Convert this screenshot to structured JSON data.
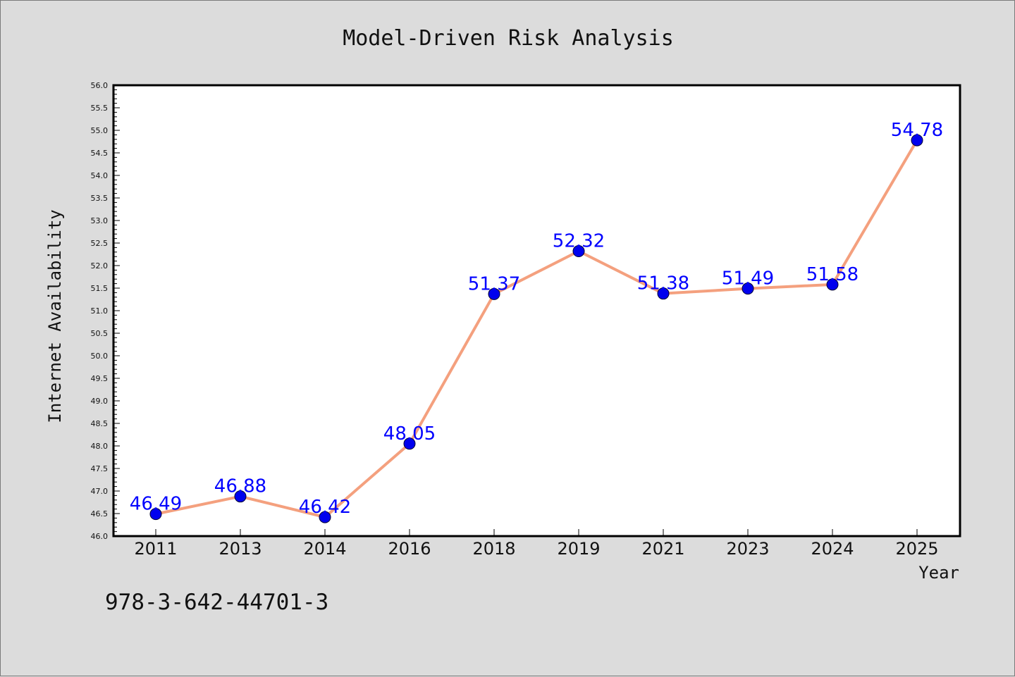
{
  "colors": {
    "background": "#dcdcdc",
    "plot_background": "#ffffff",
    "line": "#f4a07e",
    "marker": "#0000ee",
    "data_label": "#0000ff"
  },
  "footer_text": "978-3-642-44701-3",
  "chart_data": {
    "type": "line",
    "title": "Model-Driven Risk Analysis",
    "xlabel": "Year",
    "ylabel": "Internet Availability",
    "categories": [
      "2011",
      "2013",
      "2014",
      "2016",
      "2018",
      "2019",
      "2021",
      "2023",
      "2024",
      "2025"
    ],
    "series": [
      {
        "values": [
          46.49,
          46.88,
          46.42,
          48.05,
          51.37,
          52.32,
          51.38,
          51.49,
          51.58,
          54.78
        ],
        "data_labels": [
          "46.49",
          "46.88",
          "46.42",
          "48.05",
          "51.37",
          "52.32",
          "51.38",
          "51.49",
          "51.58",
          "54.78"
        ]
      }
    ],
    "ylim": [
      46.0,
      56.0
    ],
    "yticks": [
      "46.0",
      "46.5",
      "47.0",
      "47.5",
      "48.0",
      "48.5",
      "49.0",
      "49.5",
      "50.0",
      "50.5",
      "51.0",
      "51.5",
      "52.0",
      "52.5",
      "53.0",
      "53.5",
      "54.0",
      "54.5",
      "55.0",
      "55.5",
      "56.0"
    ],
    "y_minor_step": 0.1,
    "grid": false,
    "legend": "none"
  }
}
